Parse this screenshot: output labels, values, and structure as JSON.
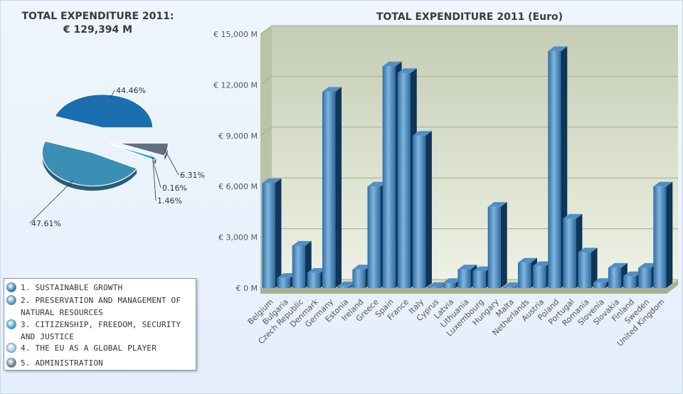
{
  "left_title": {
    "line1": "TOTAL EXPENDITURE 2011:",
    "line2": "€ 129,394 M"
  },
  "chart_data": [
    {
      "type": "pie",
      "slices": [
        {
          "name": "1. SUSTAINABLE GROWTH",
          "value": 44.46,
          "label": "44.46%",
          "color": "#1c6fae"
        },
        {
          "name": "2. PRESERVATION AND MANAGEMENT OF NATURAL RESOURCES",
          "value": 47.61,
          "label": "47.61%",
          "color": "#3c8fb4"
        },
        {
          "name": "3. CITIZENSHIP, FREEDOM, SECURITY AND JUSTICE",
          "value": 1.46,
          "label": "1.46%",
          "color": "#2aa0d8"
        },
        {
          "name": "4. THE EU AS A GLOBAL PLAYER",
          "value": 0.16,
          "label": "0.16%",
          "color": "#8cc6e4"
        },
        {
          "name": "5. ADMINISTRATION",
          "value": 6.31,
          "label": "6.31%",
          "color": "#607080"
        }
      ]
    },
    {
      "type": "bar",
      "title": "TOTAL EXPENDITURE 2011 (Euro)",
      "categories": [
        "Belgium",
        "Bulgaria",
        "Czech Republic",
        "Denmark",
        "Germany",
        "Estonia",
        "Ireland",
        "Greece",
        "Spain",
        "France",
        "Italy",
        "Cyprus",
        "Latvia",
        "Lithuania",
        "Luxembourg",
        "Hungary",
        "Malta",
        "Netherlands",
        "Austria",
        "Poland",
        "Portugal",
        "Romania",
        "Slovenia",
        "Slovakia",
        "Finland",
        "Sweden",
        "United Kingdom"
      ],
      "values": [
        6200,
        600,
        2500,
        900,
        11600,
        100,
        1100,
        6000,
        13100,
        12700,
        9000,
        50,
        300,
        1100,
        1000,
        4800,
        50,
        1500,
        1300,
        14000,
        4100,
        2100,
        300,
        1200,
        700,
        1200,
        6000
      ],
      "ylim": [
        0,
        15000
      ],
      "yticks": [
        0,
        3000,
        6000,
        9000,
        12000,
        15000
      ],
      "ytick_labels": [
        "€ 0 M",
        "€ 3,000 M",
        "€ 6,000 M",
        "€ 9,000 M",
        "€ 12,000 M",
        "€ 15,000 M"
      ],
      "bar_color": "#1e5e94"
    }
  ]
}
